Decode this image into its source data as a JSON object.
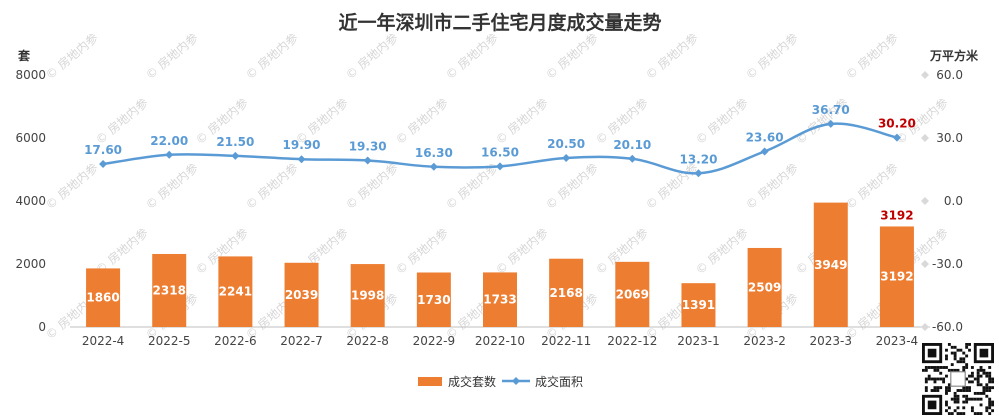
{
  "title": "近一年深圳市二手住宅月度成交量走势",
  "watermark": "房地内参",
  "colors": {
    "bar": "#ED7D31",
    "line": "#5B9BD5",
    "highlight": "#C00000",
    "grid": "#D9D9D9",
    "axis": "#BFBFBF"
  },
  "chart_data": {
    "type": "bar",
    "title": "近一年深圳市二手住宅月度成交量走势",
    "categories": [
      "2022-4",
      "2022-5",
      "2022-6",
      "2022-7",
      "2022-8",
      "2022-9",
      "2022-10",
      "2022-11",
      "2022-12",
      "2023-1",
      "2023-2",
      "2023-3",
      "2023-4"
    ],
    "y_left": {
      "label": "套",
      "ylim": [
        0,
        8000
      ],
      "ticks": [
        "0",
        "2000",
        "4000",
        "6000",
        "8000"
      ]
    },
    "y_right": {
      "label": "万平方米",
      "ylim": [
        -60,
        60
      ],
      "ticks": [
        "-60.0",
        "-30.0",
        "0.0",
        "30.0",
        "60.0"
      ]
    },
    "series": [
      {
        "name": "成交套数",
        "type": "bar",
        "axis": "left",
        "values": [
          1860,
          2318,
          2241,
          2039,
          1998,
          1730,
          1733,
          2168,
          2069,
          1391,
          2509,
          3949,
          3192
        ]
      },
      {
        "name": "成交面积",
        "type": "line",
        "axis": "right",
        "values": [
          17.6,
          22.0,
          21.5,
          19.9,
          19.3,
          16.3,
          16.5,
          20.5,
          20.1,
          13.2,
          23.6,
          36.7,
          30.2
        ],
        "labels": [
          "17.60",
          "22.00",
          "21.50",
          "19.90",
          "19.30",
          "16.30",
          "16.50",
          "20.50",
          "20.10",
          "13.20",
          "23.60",
          "36.70",
          "30.20"
        ]
      }
    ],
    "highlight_last": true,
    "legend_position": "bottom",
    "grid": false
  }
}
